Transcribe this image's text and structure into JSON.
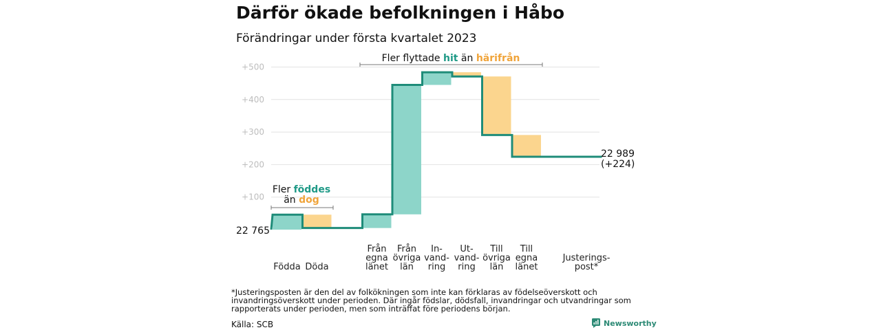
{
  "title": "Därför ökade befolkningen i Håbo",
  "subtitle": "Förändringar under första kvartalet 2023",
  "annotations": {
    "left": {
      "pre1": "Fler ",
      "hl1": "föddes",
      "pre2": "än ",
      "hl2": "dog"
    },
    "top": {
      "pre": "Fler flyttade ",
      "hl1": "hit",
      "mid": " än ",
      "hl2": "härifrån"
    }
  },
  "footnote": "*Justeringsposten är den del av folkökningen som inte kan förklaras av födelseöverskott och invandringsöverskott under perioden. Där ingår födslar, dödsfall, invandringar och utvandringar som rapporterats under perioden, men som inträffat före periodens början.",
  "source": "Källa: SCB",
  "brand": {
    "name": "Newsworthy"
  },
  "colors": {
    "increase": "#8dd5c9",
    "decrease": "#fbd58e",
    "line": "#1e8c79",
    "teal_text": "#1e9986",
    "orange_text": "#f0a43a"
  },
  "chart_data": {
    "type": "waterfall",
    "title": "Därför ökade befolkningen i Håbo",
    "subtitle": "Förändringar under första kvartalet 2023",
    "base_label": "22 765",
    "end_label": [
      "22 989",
      "(+224)"
    ],
    "y_ticks": [
      {
        "value": 100,
        "label": "+100"
      },
      {
        "value": 200,
        "label": "+200"
      },
      {
        "value": 300,
        "label": "+300"
      },
      {
        "value": 400,
        "label": "+400"
      },
      {
        "value": 500,
        "label": "+500"
      }
    ],
    "ylim": [
      0,
      500
    ],
    "grid": true,
    "categories": [
      {
        "lines": [
          "Födda"
        ],
        "change": 46
      },
      {
        "lines": [
          "Döda"
        ],
        "change": -41
      },
      {
        "lines": [],
        "change": 0
      },
      {
        "lines": [
          "Från",
          "egna",
          "länet"
        ],
        "change": 42
      },
      {
        "lines": [
          "Från",
          "övriga",
          "län"
        ],
        "change": 398
      },
      {
        "lines": [
          "In-",
          "vand-",
          "ring"
        ],
        "change": 39
      },
      {
        "lines": [
          "Ut-",
          "vand-",
          "ring"
        ],
        "change": -13
      },
      {
        "lines": [
          "Till",
          "övriga",
          "län"
        ],
        "change": -180
      },
      {
        "lines": [
          "Till",
          "egna",
          "länet"
        ],
        "change": -67
      },
      {
        "lines": [],
        "change": 0
      },
      {
        "lines": [
          "Justerings-",
          "post*"
        ],
        "change": 0
      }
    ],
    "final_change": 224
  }
}
